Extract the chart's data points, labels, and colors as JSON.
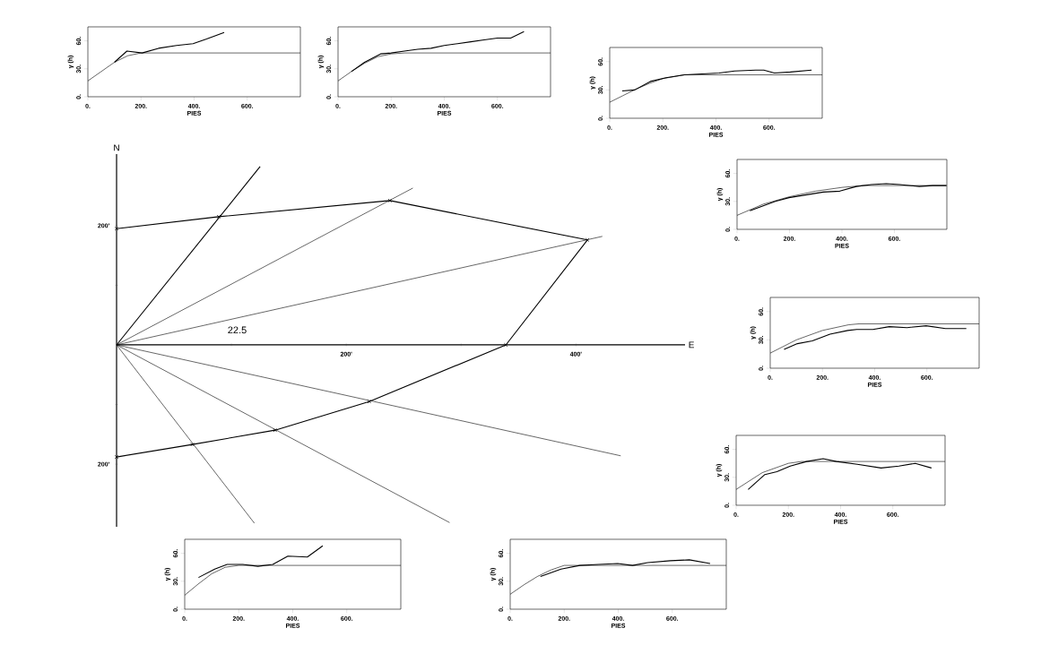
{
  "chart_data": [
    {
      "type": "line",
      "xlabel": "PIES",
      "ylabel": "γ (h)",
      "xlim": [
        0,
        800
      ],
      "ylim": [
        0,
        75
      ],
      "xticks": [
        {
          "value": 0,
          "label": "0."
        },
        {
          "value": 200,
          "label": "200."
        },
        {
          "value": 400,
          "label": "400."
        },
        {
          "value": 600,
          "label": "600."
        }
      ],
      "yticks": [
        {
          "value": 0,
          "label": "0."
        },
        {
          "value": 30,
          "label": "30."
        },
        {
          "value": 60,
          "label": "60."
        }
      ],
      "series": [
        {
          "color": "#000000",
          "x": [
            100,
            147,
            204,
            266,
            334,
            396,
            447,
            513
          ],
          "values": [
            37,
            49,
            47,
            52,
            55,
            57,
            62,
            69
          ]
        },
        {
          "color": "#000000",
          "x": [
            0,
            50,
            100,
            150,
            200,
            800
          ],
          "values": [
            17,
            27,
            37,
            44,
            47,
            47
          ]
        }
      ]
    },
    {
      "type": "line",
      "xlabel": "PIES",
      "ylabel": "γ (h)",
      "xlim": [
        0,
        800
      ],
      "ylim": [
        0,
        75
      ],
      "xticks": [
        {
          "value": 0,
          "label": "0."
        },
        {
          "value": 200,
          "label": "200."
        },
        {
          "value": 400,
          "label": "400."
        },
        {
          "value": 600,
          "label": "600."
        }
      ],
      "yticks": [
        {
          "value": 0,
          "label": "0."
        },
        {
          "value": 30,
          "label": "30."
        },
        {
          "value": 60,
          "label": "60."
        }
      ],
      "series": [
        {
          "color": "#000000",
          "x": [
            50,
            100,
            160,
            200,
            250,
            300,
            350,
            400,
            450,
            500,
            550,
            600,
            650,
            700
          ],
          "values": [
            27,
            37,
            46,
            47,
            49,
            51,
            52,
            55,
            57,
            59,
            61,
            63,
            63,
            70
          ]
        },
        {
          "color": "#000000",
          "x": [
            0,
            50,
            100,
            150,
            200,
            250,
            800
          ],
          "values": [
            17,
            27,
            36,
            43,
            46,
            47,
            47
          ]
        }
      ]
    },
    {
      "type": "line",
      "xlabel": "PIES",
      "ylabel": "γ (h)",
      "xlim": [
        0,
        800
      ],
      "ylim": [
        0,
        75
      ],
      "xticks": [
        {
          "value": 0,
          "label": "0."
        },
        {
          "value": 200,
          "label": "200."
        },
        {
          "value": 400,
          "label": "400."
        },
        {
          "value": 600,
          "label": "600."
        }
      ],
      "yticks": [
        {
          "value": 0,
          "label": "0."
        },
        {
          "value": 30,
          "label": "30."
        },
        {
          "value": 60,
          "label": "60."
        }
      ],
      "series": [
        {
          "color": "#000000",
          "x": [
            47,
            94,
            153,
            212,
            282,
            412,
            470,
            550,
            580,
            620,
            680,
            760
          ],
          "values": [
            29,
            30,
            39,
            43,
            46,
            48,
            50,
            51,
            51,
            48,
            49,
            51
          ]
        },
        {
          "color": "#000000",
          "x": [
            0,
            50,
            100,
            150,
            200,
            280,
            800
          ],
          "values": [
            17,
            24,
            31,
            37,
            42,
            46,
            46
          ]
        }
      ]
    },
    {
      "type": "line",
      "xlabel": "E",
      "ylabel": "N",
      "xlim": [
        0,
        495
      ],
      "ylim": [
        -305,
        320
      ],
      "marker": "none",
      "xticks": [
        {
          "value": 100,
          "label": null
        },
        {
          "value": 200,
          "label": "200'"
        },
        {
          "value": 300,
          "label": null
        },
        {
          "value": 400,
          "label": "400'"
        }
      ],
      "yticks": [
        {
          "value": -200,
          "label": "200'"
        },
        {
          "value": -100,
          "label": null
        },
        {
          "value": 100,
          "label": null
        },
        {
          "value": 200,
          "label": "200'"
        }
      ],
      "annotations": [
        "22.5"
      ],
      "series": [
        {
          "color": "#000000",
          "x": [
            0,
            125
          ],
          "values": [
            0,
            299
          ]
        },
        {
          "color": "#000000",
          "x": [
            0,
            258
          ],
          "values": [
            0,
            263
          ]
        },
        {
          "color": "#000000",
          "x": [
            0,
            423
          ],
          "values": [
            0,
            182
          ]
        },
        {
          "color": "#000000",
          "x": [
            0,
            439
          ],
          "values": [
            0,
            -186
          ]
        },
        {
          "color": "#000000",
          "x": [
            0,
            290
          ],
          "values": [
            0,
            -298
          ]
        },
        {
          "color": "#000000",
          "x": [
            0,
            120
          ],
          "values": [
            0,
            -299
          ]
        },
        {
          "color": "#000000",
          "marker": "cross",
          "x": [
            0,
            89,
            238,
            410,
            339,
            220,
            138,
            66,
            0
          ],
          "values": [
            195,
            215,
            242,
            176,
            0,
            -95,
            -143,
            -167,
            -188
          ]
        }
      ]
    },
    {
      "type": "line",
      "xlabel": "PIES",
      "ylabel": "γ (h)",
      "xlim": [
        0,
        800
      ],
      "ylim": [
        0,
        75
      ],
      "xticks": [
        {
          "value": 0,
          "label": "0."
        },
        {
          "value": 200,
          "label": "200."
        },
        {
          "value": 400,
          "label": "400."
        },
        {
          "value": 600,
          "label": "600."
        }
      ],
      "yticks": [
        {
          "value": 0,
          "label": "0."
        },
        {
          "value": 30,
          "label": "30."
        },
        {
          "value": 60,
          "label": "60."
        }
      ],
      "series": [
        {
          "color": "#000000",
          "x": [
            49,
            146,
            198,
            329,
            392,
            455,
            512,
            569,
            621,
            695,
            746,
            798
          ],
          "values": [
            20,
            30,
            34,
            40,
            41,
            46,
            48,
            49,
            48,
            46,
            47,
            47
          ]
        },
        {
          "color": "#000000",
          "x": [
            0,
            100,
            200,
            300,
            400,
            480,
            800
          ],
          "values": [
            15,
            27,
            35,
            41,
            45,
            47,
            47
          ]
        }
      ]
    },
    {
      "type": "line",
      "xlabel": "PIES",
      "ylabel": "γ (h)",
      "xlim": [
        0,
        800
      ],
      "ylim": [
        0,
        75
      ],
      "xticks": [
        {
          "value": 0,
          "label": "0."
        },
        {
          "value": 200,
          "label": "200."
        },
        {
          "value": 400,
          "label": "400."
        },
        {
          "value": 600,
          "label": "600."
        }
      ],
      "yticks": [
        {
          "value": 0,
          "label": "0."
        },
        {
          "value": 30,
          "label": "30."
        },
        {
          "value": 60,
          "label": "60."
        }
      ],
      "series": [
        {
          "color": "#000000",
          "x": [
            53,
            104,
            161,
            229,
            297,
            331,
            393,
            456,
            524,
            597,
            671,
            751
          ],
          "values": [
            20,
            26,
            29,
            36,
            40,
            41,
            41,
            44,
            43,
            45,
            42,
            42
          ]
        },
        {
          "color": "#000000",
          "x": [
            0,
            100,
            200,
            300,
            340,
            800
          ],
          "values": [
            16,
            30,
            40,
            46,
            47,
            47
          ]
        }
      ]
    },
    {
      "type": "line",
      "xlabel": "PIES",
      "ylabel": "γ (h)",
      "xlim": [
        0,
        800
      ],
      "ylim": [
        0,
        75
      ],
      "xticks": [
        {
          "value": 0,
          "label": "0."
        },
        {
          "value": 200,
          "label": "200."
        },
        {
          "value": 400,
          "label": "400."
        },
        {
          "value": 600,
          "label": "600."
        }
      ],
      "yticks": [
        {
          "value": 0,
          "label": "0."
        },
        {
          "value": 30,
          "label": "30."
        },
        {
          "value": 60,
          "label": "60."
        }
      ],
      "series": [
        {
          "color": "#000000",
          "x": [
            46,
            110,
            156,
            207,
            270,
            333,
            384,
            464,
            555,
            623,
            686,
            748
          ],
          "values": [
            17,
            33,
            36,
            42,
            47,
            50,
            47,
            44,
            40,
            42,
            45,
            40
          ]
        },
        {
          "color": "#000000",
          "x": [
            0,
            100,
            200,
            250,
            800
          ],
          "values": [
            17,
            35,
            45,
            47,
            47
          ]
        }
      ]
    },
    {
      "type": "line",
      "xlabel": "PIES",
      "ylabel": "γ (h)",
      "xlim": [
        0,
        800
      ],
      "ylim": [
        0,
        75
      ],
      "xticks": [
        {
          "value": 0,
          "label": "0."
        },
        {
          "value": 200,
          "label": "200."
        },
        {
          "value": 400,
          "label": "400."
        },
        {
          "value": 600,
          "label": "600."
        }
      ],
      "yticks": [
        {
          "value": 0,
          "label": "0."
        },
        {
          "value": 30,
          "label": "30."
        },
        {
          "value": 60,
          "label": "60."
        }
      ],
      "series": [
        {
          "color": "#000000",
          "x": [
            51,
            111,
            157,
            215,
            271,
            326,
            382,
            454,
            511
          ],
          "values": [
            34,
            43,
            48,
            48,
            46,
            48,
            57,
            56,
            68
          ]
        },
        {
          "color": "#000000",
          "x": [
            0,
            50,
            100,
            150,
            200,
            800
          ],
          "values": [
            15,
            27,
            38,
            45,
            47,
            47
          ]
        }
      ]
    },
    {
      "type": "line",
      "xlabel": "PIES",
      "ylabel": "γ (h)",
      "xlim": [
        0,
        800
      ],
      "ylim": [
        0,
        75
      ],
      "xticks": [
        {
          "value": 0,
          "label": "0."
        },
        {
          "value": 200,
          "label": "200."
        },
        {
          "value": 400,
          "label": "400."
        },
        {
          "value": 600,
          "label": "600."
        }
      ],
      "yticks": [
        {
          "value": 0,
          "label": "0."
        },
        {
          "value": 30,
          "label": "30."
        },
        {
          "value": 60,
          "label": "60."
        }
      ],
      "series": [
        {
          "color": "#000000",
          "x": [
            112,
            188,
            258,
            328,
            398,
            453,
            509,
            593,
            663,
            740
          ],
          "values": [
            35,
            43,
            47,
            48,
            49,
            47,
            50,
            52,
            53,
            49
          ]
        },
        {
          "color": "#000000",
          "x": [
            0,
            50,
            100,
            150,
            200,
            800
          ],
          "values": [
            16,
            26,
            35,
            42,
            47,
            47
          ]
        }
      ]
    }
  ]
}
